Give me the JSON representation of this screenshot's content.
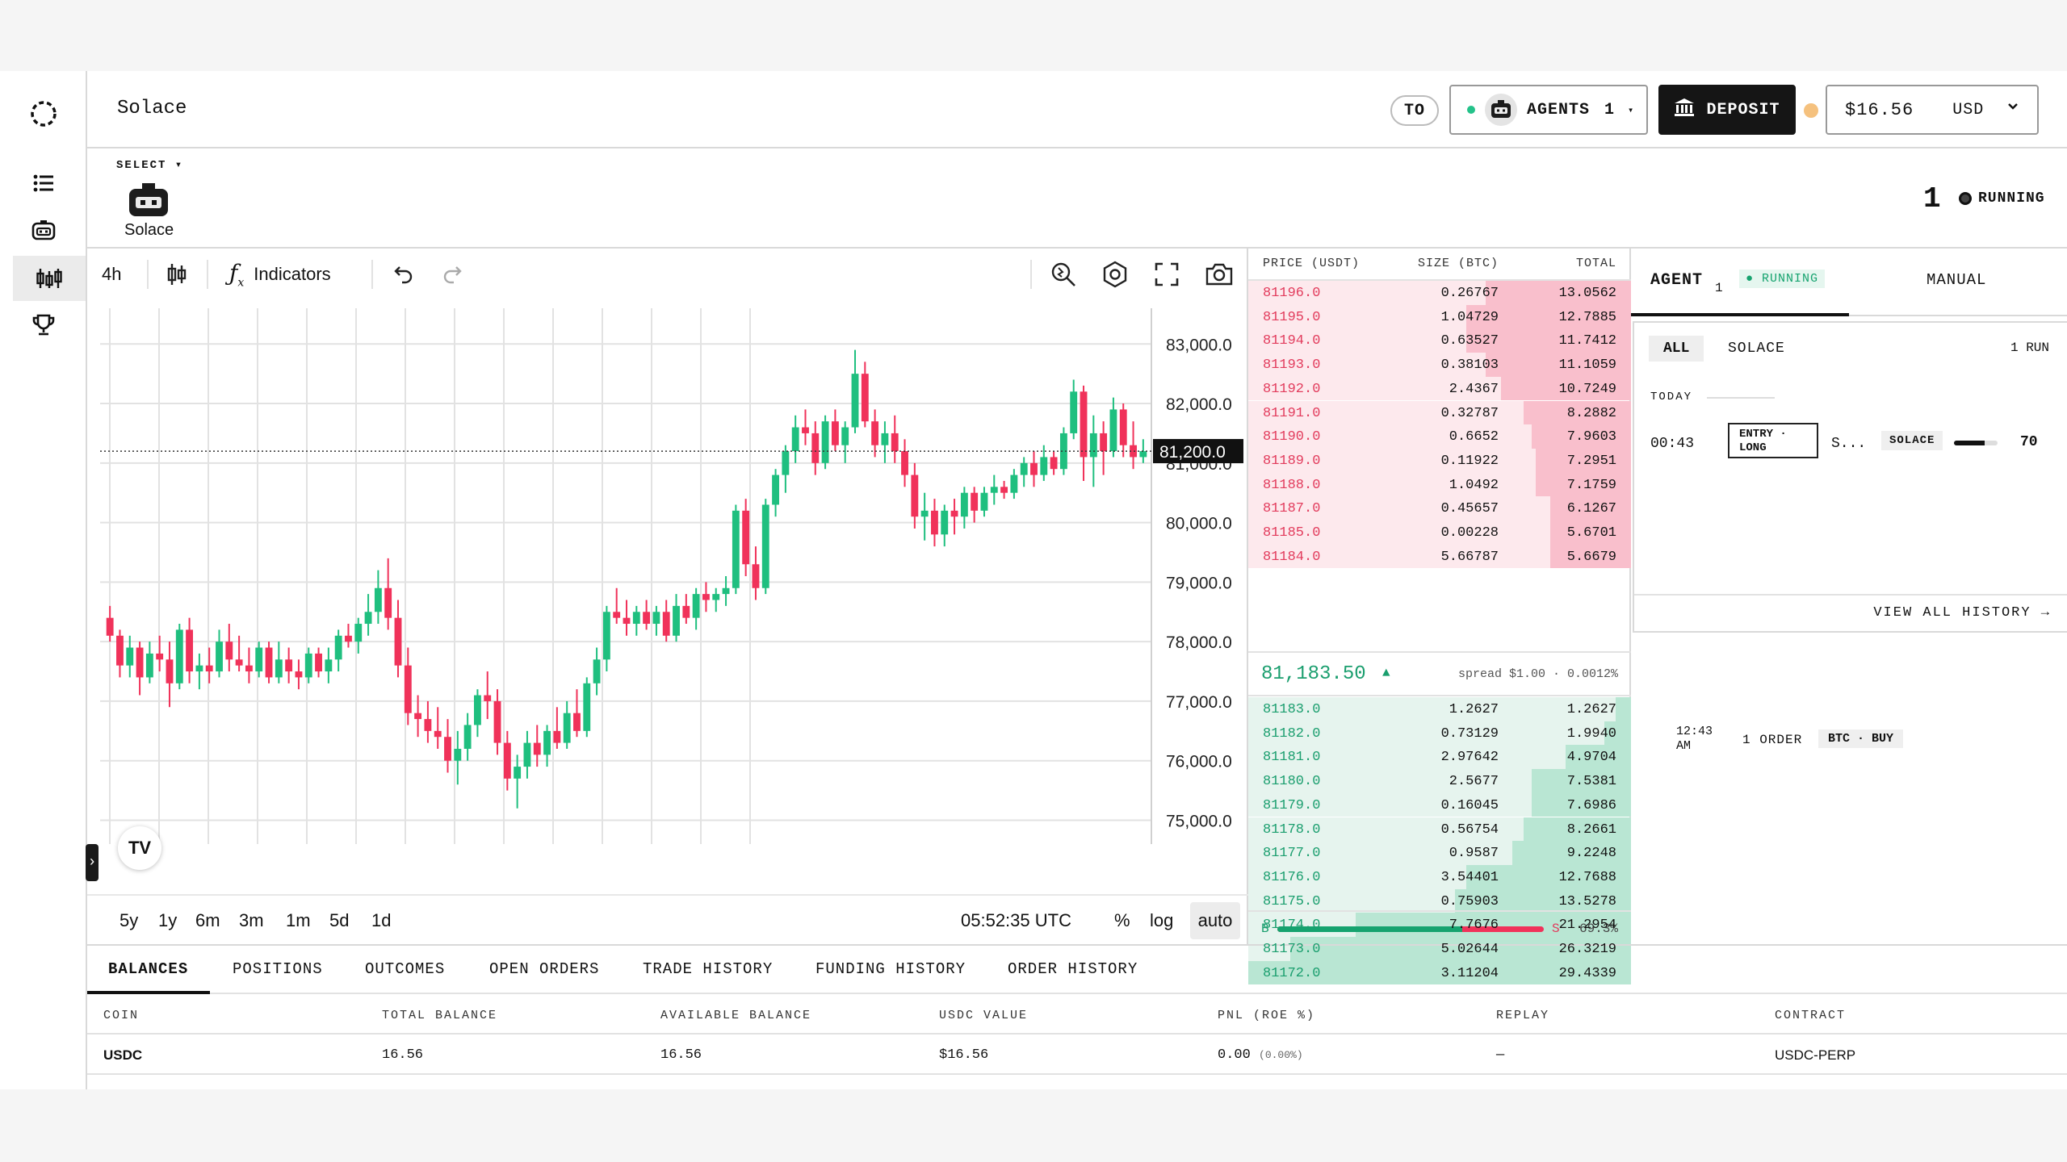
{
  "header": {
    "app_title": "Solace",
    "to_label": "TO",
    "agents_label": "AGENTS",
    "agents_count": "1",
    "deposit_label": "DEPOSIT",
    "balance": "$16.56",
    "currency": "USD"
  },
  "agent_strip": {
    "select_label": "SELECT ▾",
    "agent_name": "Solace",
    "running_count": "1",
    "running_label": "RUNNING"
  },
  "chart_toolbar": {
    "interval": "4h",
    "indicators_label": "Indicators"
  },
  "chart_footer": {
    "ranges": [
      "5y",
      "1y",
      "6m",
      "3m",
      "1m",
      "5d",
      "1d"
    ],
    "time": "05:52:35 UTC",
    "percent_label": "%",
    "log_label": "log",
    "auto_label": "auto"
  },
  "chart_data": {
    "type": "candlestick",
    "interval": "4h",
    "y_ticks": [
      75000,
      76000,
      77000,
      78000,
      79000,
      80000,
      81000,
      82000,
      83000
    ],
    "y_tick_labels": [
      "75,000.0",
      "76,000.0",
      "77,000.0",
      "78,000.0",
      "79,000.0",
      "80,000.0",
      "81,000.0",
      "82,000.0",
      "83,000.0"
    ],
    "ylim": [
      74600,
      83600
    ],
    "last_price": 81200,
    "last_price_label": "81,200.0",
    "grid": true,
    "candles": [
      [
        78400,
        78600,
        78000,
        78100
      ],
      [
        78100,
        78200,
        77400,
        77600
      ],
      [
        77600,
        78100,
        77400,
        77900
      ],
      [
        77900,
        78000,
        77100,
        77400
      ],
      [
        77400,
        78000,
        77300,
        77800
      ],
      [
        77800,
        78100,
        77500,
        77700
      ],
      [
        77700,
        78000,
        76900,
        77300
      ],
      [
        77300,
        78300,
        77200,
        78200
      ],
      [
        78200,
        78400,
        77300,
        77500
      ],
      [
        77500,
        77800,
        77200,
        77600
      ],
      [
        77600,
        77900,
        77300,
        77500
      ],
      [
        77500,
        78200,
        77400,
        78000
      ],
      [
        78000,
        78300,
        77500,
        77700
      ],
      [
        77700,
        78100,
        77500,
        77600
      ],
      [
        77600,
        77900,
        77300,
        77500
      ],
      [
        77500,
        78000,
        77400,
        77900
      ],
      [
        77900,
        78000,
        77300,
        77400
      ],
      [
        77400,
        78000,
        77300,
        77700
      ],
      [
        77700,
        77900,
        77300,
        77500
      ],
      [
        77500,
        77700,
        77200,
        77400
      ],
      [
        77400,
        77900,
        77300,
        77800
      ],
      [
        77800,
        77900,
        77400,
        77500
      ],
      [
        77500,
        77900,
        77300,
        77700
      ],
      [
        77700,
        78200,
        77500,
        78100
      ],
      [
        78100,
        78300,
        77900,
        78000
      ],
      [
        78000,
        78400,
        77800,
        78300
      ],
      [
        78300,
        78800,
        78100,
        78500
      ],
      [
        78500,
        79200,
        78300,
        78900
      ],
      [
        78900,
        79400,
        78200,
        78400
      ],
      [
        78400,
        78700,
        77400,
        77600
      ],
      [
        77600,
        77900,
        76600,
        76800
      ],
      [
        76800,
        77100,
        76400,
        76700
      ],
      [
        76700,
        77000,
        76300,
        76500
      ],
      [
        76500,
        76900,
        76200,
        76400
      ],
      [
        76400,
        76700,
        75800,
        76000
      ],
      [
        76000,
        76500,
        75600,
        76200
      ],
      [
        76200,
        76800,
        76000,
        76600
      ],
      [
        76600,
        77200,
        76400,
        77100
      ],
      [
        77100,
        77500,
        76700,
        77000
      ],
      [
        77000,
        77200,
        76100,
        76300
      ],
      [
        76300,
        76500,
        75500,
        75700
      ],
      [
        75700,
        76100,
        75200,
        75900
      ],
      [
        75900,
        76500,
        75700,
        76300
      ],
      [
        76300,
        76600,
        75900,
        76100
      ],
      [
        76100,
        76600,
        75900,
        76500
      ],
      [
        76500,
        76900,
        76200,
        76300
      ],
      [
        76300,
        77000,
        76200,
        76800
      ],
      [
        76800,
        77200,
        76400,
        76500
      ],
      [
        76500,
        77400,
        76400,
        77300
      ],
      [
        77300,
        77900,
        77100,
        77700
      ],
      [
        77700,
        78600,
        77500,
        78500
      ],
      [
        78500,
        78900,
        78300,
        78400
      ],
      [
        78400,
        78700,
        78100,
        78300
      ],
      [
        78300,
        78600,
        78100,
        78500
      ],
      [
        78500,
        78700,
        78200,
        78300
      ],
      [
        78300,
        78600,
        78100,
        78500
      ],
      [
        78500,
        78700,
        78000,
        78100
      ],
      [
        78100,
        78800,
        78000,
        78600
      ],
      [
        78600,
        78800,
        78300,
        78400
      ],
      [
        78400,
        78900,
        78200,
        78800
      ],
      [
        78800,
        79000,
        78500,
        78700
      ],
      [
        78700,
        78900,
        78500,
        78800
      ],
      [
        78800,
        79100,
        78600,
        78900
      ],
      [
        78900,
        80300,
        78800,
        80200
      ],
      [
        80200,
        80400,
        79100,
        79300
      ],
      [
        79300,
        79600,
        78700,
        78900
      ],
      [
        78900,
        80400,
        78800,
        80300
      ],
      [
        80300,
        80900,
        80100,
        80800
      ],
      [
        80800,
        81300,
        80500,
        81200
      ],
      [
        81200,
        81800,
        81000,
        81600
      ],
      [
        81600,
        81900,
        81300,
        81500
      ],
      [
        81500,
        81700,
        80800,
        81000
      ],
      [
        81000,
        81800,
        80900,
        81700
      ],
      [
        81700,
        81900,
        81200,
        81300
      ],
      [
        81300,
        81700,
        81000,
        81600
      ],
      [
        81600,
        82900,
        81500,
        82500
      ],
      [
        82500,
        82700,
        81600,
        81700
      ],
      [
        81700,
        81900,
        81100,
        81300
      ],
      [
        81300,
        81700,
        81000,
        81500
      ],
      [
        81500,
        81800,
        81000,
        81200
      ],
      [
        81200,
        81400,
        80600,
        80800
      ],
      [
        80800,
        81000,
        79900,
        80100
      ],
      [
        80100,
        80500,
        79700,
        80200
      ],
      [
        80200,
        80400,
        79600,
        79800
      ],
      [
        79800,
        80300,
        79600,
        80200
      ],
      [
        80200,
        80400,
        79800,
        80100
      ],
      [
        80100,
        80600,
        79900,
        80500
      ],
      [
        80500,
        80600,
        80000,
        80200
      ],
      [
        80200,
        80600,
        80100,
        80500
      ],
      [
        80500,
        80800,
        80300,
        80600
      ],
      [
        80600,
        80700,
        80400,
        80500
      ],
      [
        80500,
        80900,
        80400,
        80800
      ],
      [
        80800,
        81100,
        80600,
        81000
      ],
      [
        81000,
        81200,
        80600,
        80800
      ],
      [
        80800,
        81300,
        80700,
        81100
      ],
      [
        81100,
        81200,
        80800,
        80900
      ],
      [
        80900,
        81600,
        80800,
        81500
      ],
      [
        81500,
        82400,
        81400,
        82200
      ],
      [
        82200,
        82300,
        80700,
        81100
      ],
      [
        81100,
        81800,
        80600,
        81500
      ],
      [
        81500,
        81700,
        80800,
        81200
      ],
      [
        81200,
        82100,
        81100,
        81900
      ],
      [
        81900,
        82000,
        81100,
        81300
      ],
      [
        81300,
        81700,
        80900,
        81100
      ],
      [
        81100,
        81400,
        81000,
        81200
      ]
    ]
  },
  "orderbook": {
    "header": {
      "price": "PRICE (USDT)",
      "size": "SIZE (BTC)",
      "total": "TOTAL"
    },
    "asks": [
      {
        "price": "81196.0",
        "size": "0.26767",
        "total": "13.0562",
        "depth": 0.38
      },
      {
        "price": "81195.0",
        "size": "1.04729",
        "total": "12.7885",
        "depth": 0.43
      },
      {
        "price": "81194.0",
        "size": "0.63527",
        "total": "11.7412",
        "depth": 0.43
      },
      {
        "price": "81193.0",
        "size": "0.38103",
        "total": "11.1059",
        "depth": 0.38
      },
      {
        "price": "81192.0",
        "size": "2.4367",
        "total": "10.7249",
        "depth": 0.34
      },
      {
        "price": "81191.0",
        "size": "0.32787",
        "total": "8.2882",
        "depth": 0.28
      },
      {
        "price": "81190.0",
        "size": "0.6652",
        "total": "7.9603",
        "depth": 0.26
      },
      {
        "price": "81189.0",
        "size": "0.11922",
        "total": "7.2951",
        "depth": 0.25
      },
      {
        "price": "81188.0",
        "size": "1.0492",
        "total": "7.1759",
        "depth": 0.25
      },
      {
        "price": "81187.0",
        "size": "0.45657",
        "total": "6.1267",
        "depth": 0.21
      },
      {
        "price": "81185.0",
        "size": "0.00228",
        "total": "5.6701",
        "depth": 0.21
      },
      {
        "price": "81184.0",
        "size": "5.66787",
        "total": "5.6679",
        "depth": 0.21
      }
    ],
    "mid_price": "81,183.50",
    "spread": "spread $1.00 · 0.0012%",
    "bids": [
      {
        "price": "81183.0",
        "size": "1.2627",
        "total": "1.2627",
        "depth": 0.04
      },
      {
        "price": "81182.0",
        "size": "0.73129",
        "total": "1.9940",
        "depth": 0.07
      },
      {
        "price": "81181.0",
        "size": "2.97642",
        "total": "4.9704",
        "depth": 0.17
      },
      {
        "price": "81180.0",
        "size": "2.5677",
        "total": "7.5381",
        "depth": 0.26
      },
      {
        "price": "81179.0",
        "size": "0.16045",
        "total": "7.6986",
        "depth": 0.26
      },
      {
        "price": "81178.0",
        "size": "0.56754",
        "total": "8.2661",
        "depth": 0.28
      },
      {
        "price": "81177.0",
        "size": "0.9587",
        "total": "9.2248",
        "depth": 0.31
      },
      {
        "price": "81176.0",
        "size": "3.54401",
        "total": "12.7688",
        "depth": 0.43
      },
      {
        "price": "81175.0",
        "size": "0.75903",
        "total": "13.5278",
        "depth": 0.46
      },
      {
        "price": "81174.0",
        "size": "7.7676",
        "total": "21.2954",
        "depth": 0.72
      },
      {
        "price": "81173.0",
        "size": "5.02644",
        "total": "26.3219",
        "depth": 0.89
      },
      {
        "price": "81172.0",
        "size": "3.11204",
        "total": "29.4339",
        "depth": 1.0
      }
    ],
    "buy_label": "B",
    "sell_label": "S",
    "buy_ratio": 0.693,
    "ratio_label": "69.3%"
  },
  "agent_panel": {
    "tab_agent": "AGENT",
    "tab_agent_count": "1",
    "tab_agent_status": "RUNNING",
    "tab_manual": "MANUAL",
    "filter_all": "ALL",
    "filter_solace": "SOLACE",
    "run_count": "1 RUN",
    "today_label": "TODAY",
    "entry_time": "00:43",
    "entry_type": "ENTRY · LONG",
    "entry_truncated": "S...",
    "entry_agent": "SOLACE",
    "entry_progress": 0.7,
    "entry_score": "70",
    "view_all": "VIEW ALL HISTORY →",
    "history_time": "12:43 AM",
    "history_orders": "1 ORDER",
    "history_badge": "BTC · BUY"
  },
  "bottom": {
    "tabs": [
      "BALANCES",
      "POSITIONS",
      "OUTCOMES",
      "OPEN ORDERS",
      "TRADE HISTORY",
      "FUNDING HISTORY",
      "ORDER HISTORY"
    ],
    "columns": [
      "COIN",
      "TOTAL BALANCE",
      "AVAILABLE BALANCE",
      "USDC VALUE",
      "PNL (ROE %)",
      "REPLAY",
      "CONTRACT"
    ],
    "row": {
      "coin": "USDC",
      "total": "16.56",
      "available": "16.56",
      "usdc_value": "$16.56",
      "pnl": "0.00",
      "roe": "(0.00%)",
      "replay": "—",
      "contract": "USDC-PERP"
    }
  },
  "colors": {
    "up": "#1fbf7f",
    "down": "#f0325a",
    "ask_depth": "#f9bfcc",
    "bid_depth": "#b9e6d3",
    "accent": "#16a36f"
  }
}
